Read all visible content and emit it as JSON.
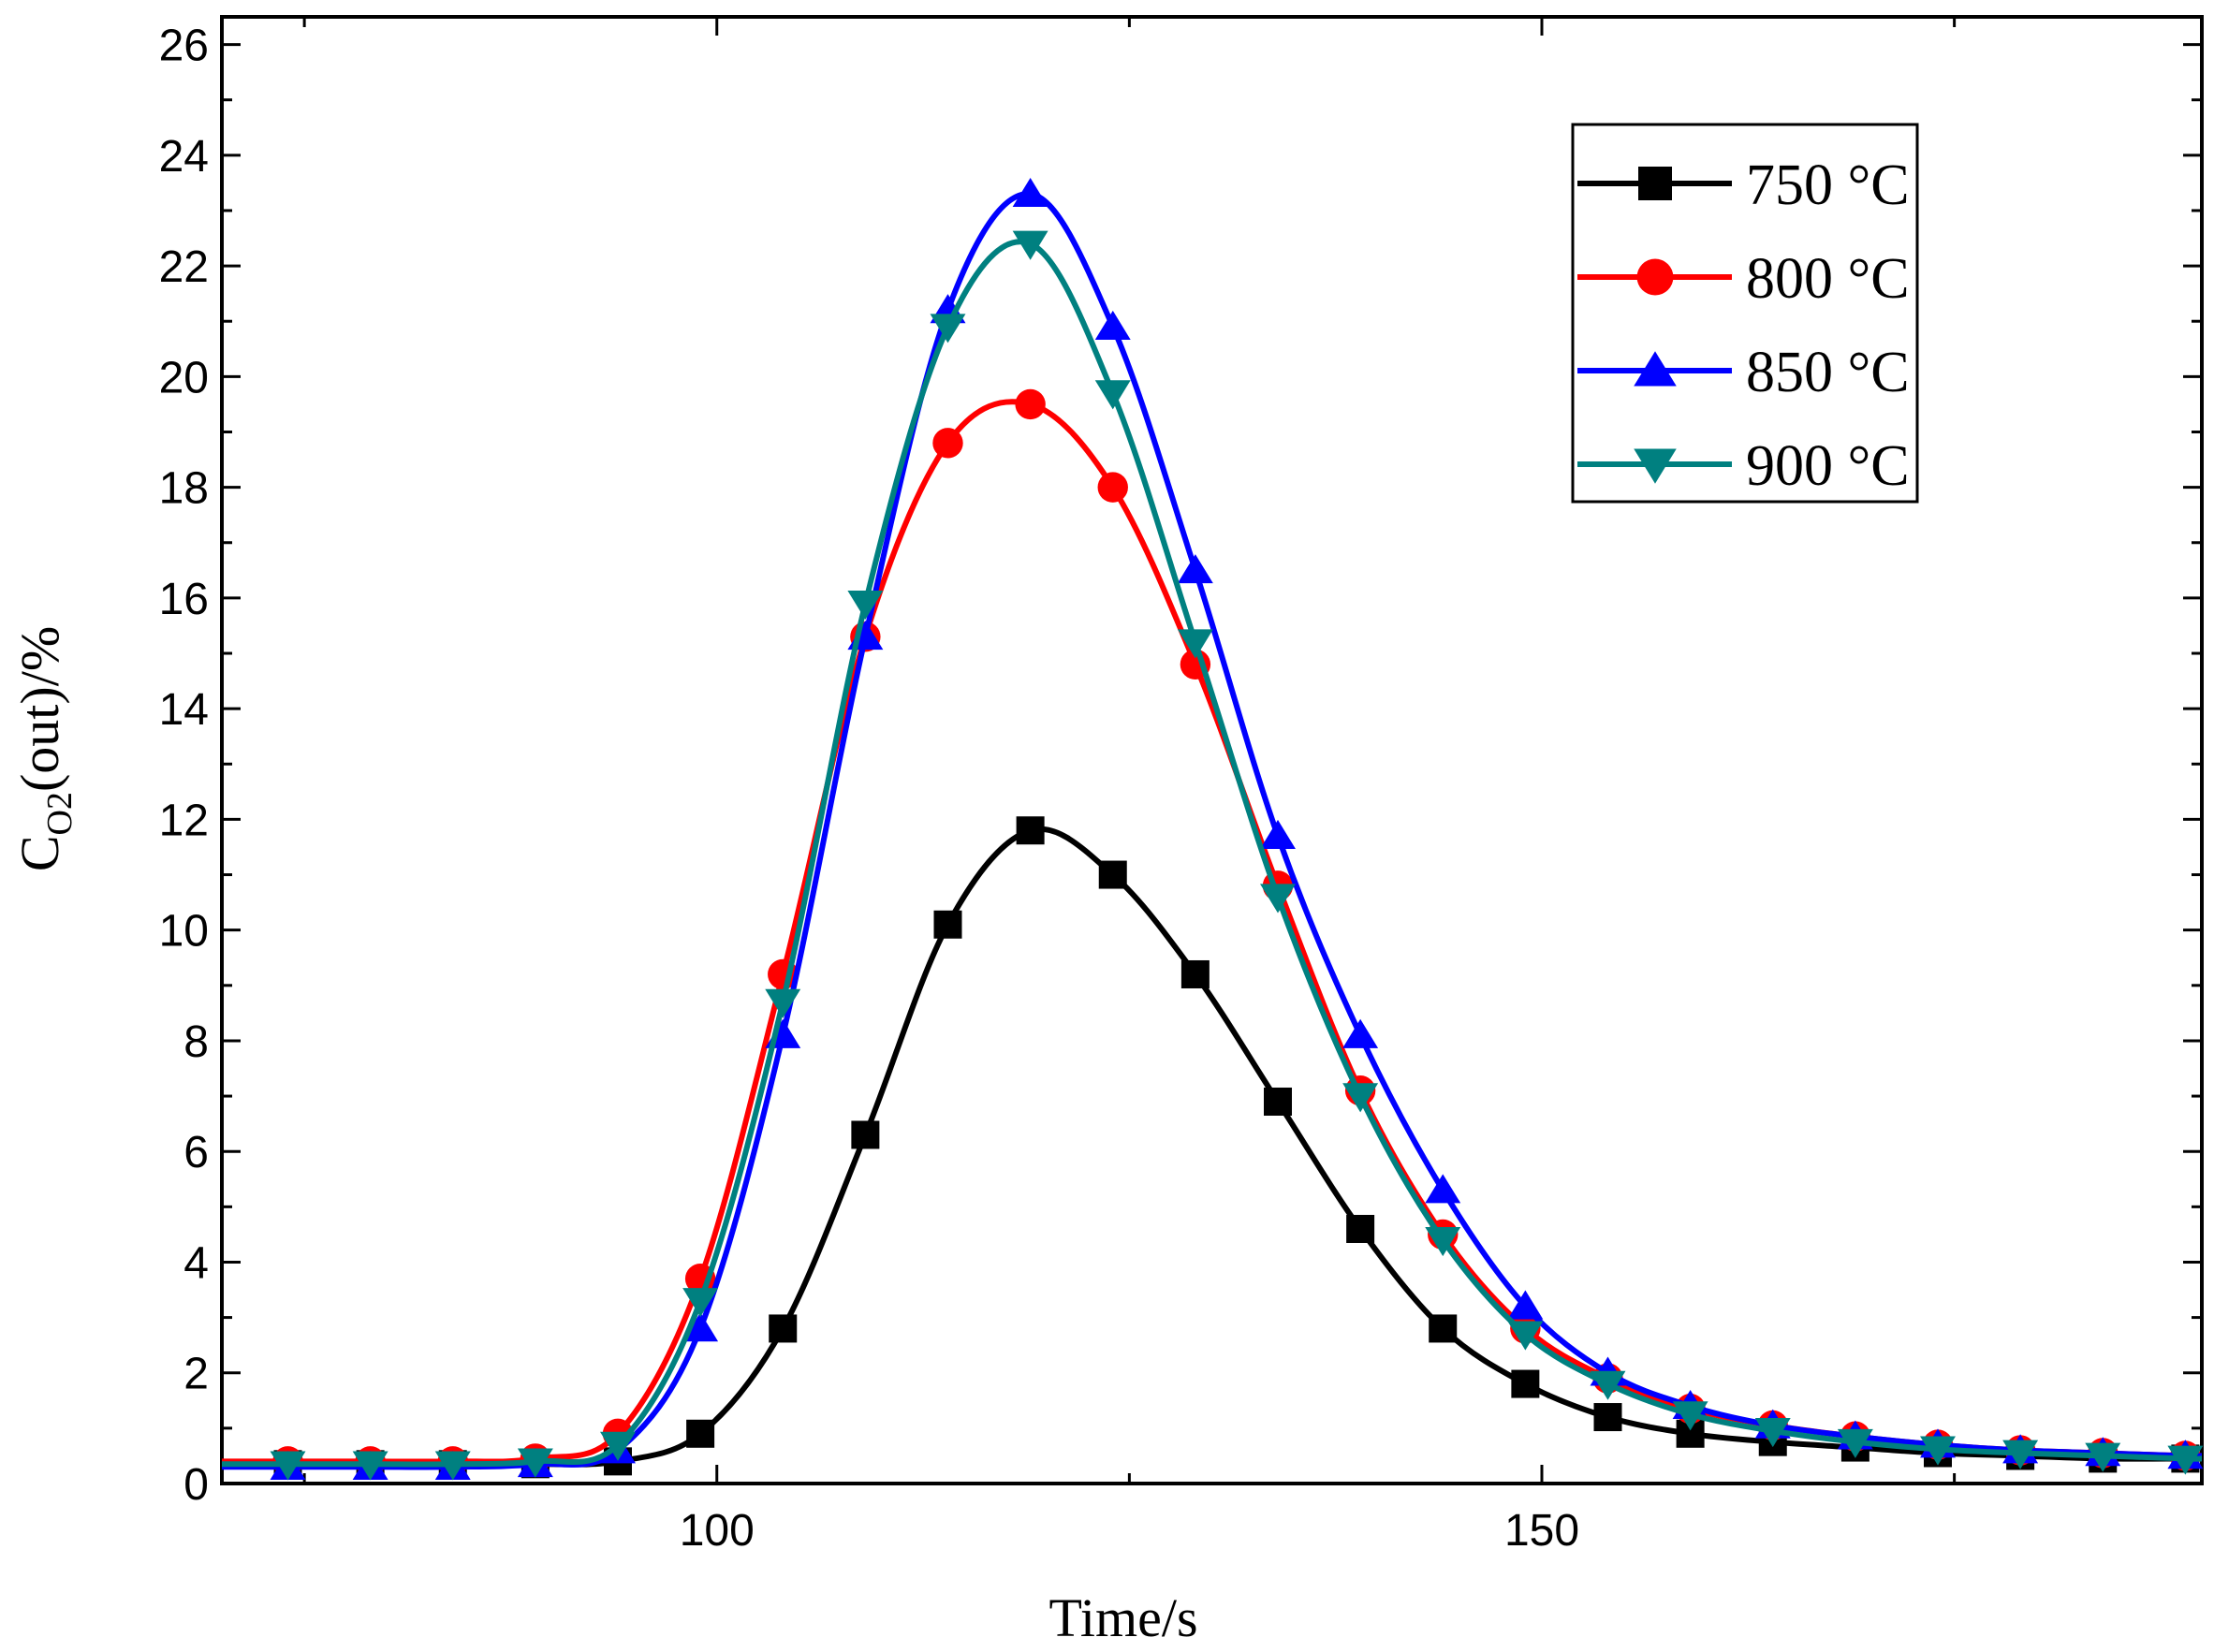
{
  "chart_data": {
    "type": "line",
    "xlabel": "Time/s",
    "ylabel_main": "C",
    "ylabel_sub": "O2",
    "ylabel_rest": "(out)/%",
    "xlim": [
      70,
      190
    ],
    "ylim": [
      0,
      26.5
    ],
    "x_ticks": [
      100,
      150
    ],
    "y_ticks": [
      0,
      2,
      4,
      6,
      8,
      10,
      12,
      14,
      16,
      18,
      20,
      22,
      24,
      26
    ],
    "x": [
      74,
      79,
      84,
      89,
      94,
      99,
      104,
      109,
      114,
      119,
      124,
      129,
      134,
      139,
      144,
      149,
      154,
      159,
      164,
      169,
      174,
      179,
      184,
      189
    ],
    "series": [
      {
        "name": "750 °C",
        "color": "#000000",
        "marker": "square",
        "values": [
          0.35,
          0.35,
          0.35,
          0.35,
          0.4,
          0.9,
          2.8,
          6.3,
          10.1,
          11.8,
          11.0,
          9.2,
          6.9,
          4.6,
          2.8,
          1.8,
          1.2,
          0.9,
          0.75,
          0.65,
          0.55,
          0.5,
          0.45,
          0.45
        ]
      },
      {
        "name": "800 °C",
        "color": "#ff0000",
        "marker": "circle",
        "values": [
          0.4,
          0.4,
          0.4,
          0.45,
          0.9,
          3.7,
          9.2,
          15.3,
          18.8,
          19.5,
          18.0,
          14.8,
          10.8,
          7.1,
          4.5,
          2.8,
          1.9,
          1.35,
          1.05,
          0.85,
          0.7,
          0.6,
          0.55,
          0.5
        ]
      },
      {
        "name": "850 °C",
        "color": "#0000ff",
        "marker": "triangle-up",
        "values": [
          0.3,
          0.3,
          0.3,
          0.35,
          0.6,
          2.8,
          8.1,
          15.3,
          21.2,
          23.3,
          20.9,
          16.5,
          11.7,
          8.1,
          5.3,
          3.2,
          2.0,
          1.4,
          1.05,
          0.85,
          0.7,
          0.6,
          0.55,
          0.5
        ]
      },
      {
        "name": "900 °C",
        "color": "#008080",
        "marker": "triangle-down",
        "values": [
          0.35,
          0.35,
          0.35,
          0.4,
          0.7,
          3.3,
          8.7,
          15.9,
          20.9,
          22.4,
          19.7,
          15.2,
          10.6,
          7.0,
          4.4,
          2.7,
          1.8,
          1.25,
          0.95,
          0.75,
          0.62,
          0.55,
          0.5,
          0.45
        ]
      }
    ],
    "legend_position": "top-right",
    "grid": false
  }
}
